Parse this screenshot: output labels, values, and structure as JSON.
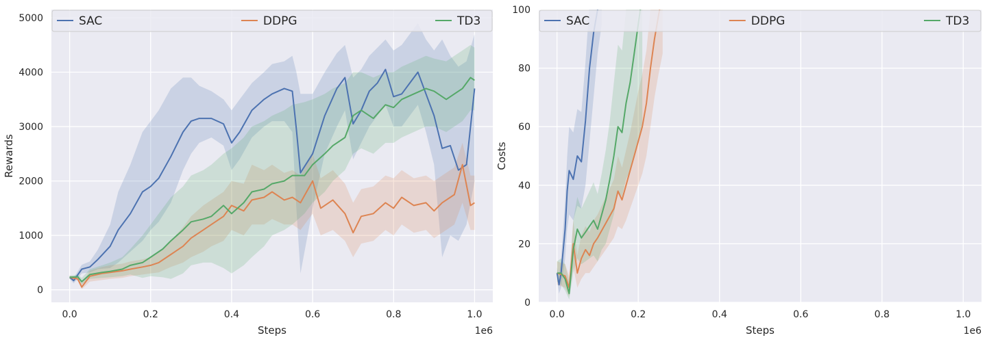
{
  "chart_data": [
    {
      "type": "line",
      "xlabel": "Steps",
      "ylabel": "Rewards",
      "x_offset_text": "1e6",
      "xlim": [
        -0.045,
        1.045
      ],
      "ylim": [
        -230,
        5150
      ],
      "xticks": [
        0.0,
        0.2,
        0.4,
        0.6,
        0.8,
        1.0
      ],
      "xtick_labels": [
        "0.0",
        "0.2",
        "0.4",
        "0.6",
        "0.8",
        "1.0"
      ],
      "yticks": [
        0,
        1000,
        2000,
        3000,
        4000,
        5000
      ],
      "ytick_labels": [
        "0",
        "1000",
        "2000",
        "3000",
        "4000",
        "5000"
      ],
      "grid": true,
      "legend_placement": "top (horizontal, full width)",
      "series": [
        {
          "name": "SAC",
          "color": "#4c72b0",
          "x": [
            0,
            0.01,
            0.03,
            0.05,
            0.07,
            0.1,
            0.12,
            0.15,
            0.18,
            0.2,
            0.22,
            0.25,
            0.28,
            0.3,
            0.32,
            0.35,
            0.38,
            0.4,
            0.42,
            0.45,
            0.48,
            0.5,
            0.53,
            0.55,
            0.56,
            0.57,
            0.6,
            0.63,
            0.66,
            0.68,
            0.7,
            0.72,
            0.74,
            0.76,
            0.78,
            0.8,
            0.82,
            0.84,
            0.86,
            0.88,
            0.9,
            0.92,
            0.94,
            0.96,
            0.98,
            1.0
          ],
          "y": [
            230,
            170,
            380,
            420,
            560,
            800,
            1100,
            1400,
            1800,
            1900,
            2050,
            2450,
            2900,
            3100,
            3150,
            3150,
            3050,
            2700,
            2900,
            3300,
            3500,
            3600,
            3700,
            3650,
            2950,
            2150,
            2500,
            3200,
            3700,
            3900,
            3050,
            3300,
            3650,
            3800,
            4050,
            3550,
            3600,
            3800,
            4000,
            3600,
            3200,
            2600,
            2650,
            2200,
            2300,
            3700
          ],
          "lower": [
            200,
            120,
            300,
            320,
            380,
            400,
            500,
            700,
            900,
            1100,
            1250,
            1600,
            2200,
            2500,
            2700,
            2800,
            2650,
            2200,
            2400,
            2800,
            3000,
            3100,
            3100,
            2900,
            1500,
            300,
            1500,
            2500,
            3000,
            3300,
            2400,
            2700,
            3000,
            3200,
            3400,
            3000,
            3000,
            3200,
            3400,
            2900,
            2300,
            600,
            1000,
            900,
            1200,
            2000
          ],
          "upper": [
            260,
            220,
            460,
            520,
            740,
            1200,
            1800,
            2300,
            2900,
            3100,
            3300,
            3700,
            3900,
            3900,
            3750,
            3650,
            3500,
            3300,
            3500,
            3800,
            4000,
            4150,
            4200,
            4300,
            4000,
            3600,
            3600,
            4000,
            4350,
            4500,
            3900,
            4050,
            4300,
            4450,
            4600,
            4400,
            4500,
            4700,
            4900,
            4600,
            4400,
            4600,
            4300,
            4100,
            4200,
            4700
          ]
        },
        {
          "name": "DDPG",
          "color": "#dd8452",
          "x": [
            0,
            0.02,
            0.03,
            0.05,
            0.08,
            0.1,
            0.13,
            0.15,
            0.18,
            0.2,
            0.22,
            0.25,
            0.28,
            0.3,
            0.33,
            0.35,
            0.38,
            0.4,
            0.43,
            0.45,
            0.48,
            0.5,
            0.53,
            0.55,
            0.57,
            0.6,
            0.62,
            0.65,
            0.68,
            0.7,
            0.72,
            0.75,
            0.78,
            0.8,
            0.82,
            0.85,
            0.88,
            0.9,
            0.92,
            0.95,
            0.97,
            0.99,
            1.0
          ],
          "y": [
            230,
            200,
            50,
            250,
            300,
            320,
            350,
            380,
            420,
            450,
            500,
            650,
            800,
            950,
            1100,
            1200,
            1350,
            1550,
            1450,
            1650,
            1700,
            1800,
            1650,
            1700,
            1600,
            2000,
            1500,
            1650,
            1400,
            1050,
            1350,
            1400,
            1600,
            1500,
            1700,
            1550,
            1600,
            1450,
            1600,
            1750,
            2300,
            1550,
            1600
          ],
          "lower": [
            200,
            170,
            10,
            150,
            180,
            200,
            220,
            250,
            280,
            300,
            320,
            420,
            500,
            600,
            700,
            800,
            900,
            1100,
            1000,
            1200,
            1200,
            1300,
            1200,
            1200,
            1100,
            1400,
            1000,
            1100,
            900,
            600,
            850,
            900,
            1100,
            1000,
            1200,
            1050,
            1100,
            950,
            1050,
            1200,
            1600,
            1100,
            1100
          ],
          "upper": [
            260,
            240,
            120,
            350,
            420,
            450,
            480,
            520,
            560,
            600,
            700,
            900,
            1150,
            1350,
            1550,
            1650,
            1800,
            2000,
            1950,
            2300,
            2200,
            2300,
            2150,
            2200,
            2100,
            2500,
            2050,
            2200,
            1950,
            1600,
            1850,
            1900,
            2100,
            2050,
            2200,
            2050,
            2100,
            2000,
            2100,
            2250,
            2700,
            2100,
            2100
          ]
        },
        {
          "name": "TD3",
          "color": "#55a868",
          "x": [
            0,
            0.02,
            0.03,
            0.05,
            0.08,
            0.1,
            0.13,
            0.15,
            0.18,
            0.2,
            0.23,
            0.25,
            0.28,
            0.3,
            0.33,
            0.35,
            0.38,
            0.4,
            0.43,
            0.45,
            0.48,
            0.5,
            0.53,
            0.55,
            0.58,
            0.6,
            0.63,
            0.65,
            0.68,
            0.7,
            0.72,
            0.75,
            0.78,
            0.8,
            0.82,
            0.85,
            0.88,
            0.9,
            0.93,
            0.95,
            0.97,
            0.99,
            1.0
          ],
          "y": [
            230,
            240,
            150,
            280,
            320,
            340,
            380,
            450,
            500,
            600,
            750,
            900,
            1100,
            1250,
            1300,
            1350,
            1550,
            1400,
            1600,
            1800,
            1850,
            1950,
            2000,
            2100,
            2100,
            2300,
            2500,
            2650,
            2800,
            3200,
            3300,
            3150,
            3400,
            3350,
            3500,
            3600,
            3700,
            3650,
            3500,
            3600,
            3700,
            3900,
            3850
          ],
          "lower": [
            200,
            200,
            100,
            200,
            220,
            230,
            250,
            280,
            220,
            250,
            230,
            200,
            300,
            450,
            500,
            500,
            400,
            300,
            450,
            600,
            800,
            1000,
            1100,
            1200,
            1400,
            1600,
            1800,
            2000,
            2200,
            2500,
            2600,
            2500,
            2700,
            2700,
            2800,
            2900,
            3000,
            3000,
            2900,
            3000,
            3100,
            3300,
            3300
          ],
          "upper": [
            260,
            280,
            220,
            380,
            450,
            500,
            600,
            750,
            1000,
            1200,
            1500,
            1700,
            1900,
            2100,
            2200,
            2300,
            2500,
            2600,
            2800,
            3000,
            3100,
            3200,
            3300,
            3400,
            3450,
            3500,
            3600,
            3700,
            3800,
            4000,
            4000,
            3900,
            4000,
            4000,
            4100,
            4200,
            4300,
            4250,
            4200,
            4300,
            4400,
            4500,
            4450
          ]
        }
      ]
    },
    {
      "type": "line",
      "xlabel": "Steps",
      "ylabel": "Costs",
      "x_offset_text": "1e6",
      "xlim": [
        -0.045,
        1.045
      ],
      "ylim": [
        0,
        100
      ],
      "xticks": [
        0.0,
        0.2,
        0.4,
        0.6,
        0.8,
        1.0
      ],
      "xtick_labels": [
        "0.0",
        "0.2",
        "0.4",
        "0.6",
        "0.8",
        "1.0"
      ],
      "yticks": [
        0,
        20,
        40,
        60,
        80,
        100
      ],
      "ytick_labels": [
        "0",
        "20",
        "40",
        "60",
        "80",
        "100"
      ],
      "grid": true,
      "legend_placement": "top (horizontal, full width)",
      "series": [
        {
          "name": "SAC",
          "color": "#4c72b0",
          "x": [
            0,
            0.005,
            0.01,
            0.02,
            0.025,
            0.03,
            0.04,
            0.05,
            0.06,
            0.07,
            0.08,
            0.09,
            0.1,
            0.11
          ],
          "y": [
            10,
            6,
            10,
            25,
            38,
            45,
            42,
            50,
            48,
            62,
            80,
            92,
            100,
            108
          ],
          "lower": [
            8,
            3,
            5,
            15,
            25,
            30,
            28,
            33,
            32,
            40,
            55,
            70,
            85,
            95
          ],
          "upper": [
            12,
            9,
            15,
            35,
            50,
            60,
            58,
            66,
            65,
            82,
            102,
            115,
            125,
            135
          ]
        },
        {
          "name": "DDPG",
          "color": "#dd8452",
          "x": [
            0,
            0.02,
            0.03,
            0.04,
            0.05,
            0.06,
            0.07,
            0.08,
            0.09,
            0.1,
            0.12,
            0.14,
            0.15,
            0.16,
            0.17,
            0.18,
            0.19,
            0.2,
            0.21,
            0.22,
            0.23,
            0.24,
            0.25,
            0.26
          ],
          "y": [
            10,
            9,
            5,
            20,
            10,
            15,
            18,
            16,
            20,
            22,
            27,
            32,
            38,
            35,
            40,
            45,
            50,
            55,
            60,
            68,
            80,
            90,
            98,
            106
          ],
          "lower": [
            6,
            5,
            2,
            12,
            5,
            8,
            10,
            10,
            12,
            14,
            18,
            22,
            26,
            25,
            28,
            32,
            36,
            40,
            44,
            50,
            60,
            70,
            78,
            85
          ],
          "upper": [
            14,
            13,
            9,
            28,
            16,
            23,
            26,
            24,
            28,
            30,
            36,
            42,
            50,
            46,
            52,
            58,
            65,
            72,
            78,
            86,
            100,
            112,
            120,
            128
          ]
        },
        {
          "name": "TD3",
          "color": "#55a868",
          "x": [
            0,
            0.01,
            0.02,
            0.03,
            0.04,
            0.05,
            0.06,
            0.07,
            0.08,
            0.09,
            0.1,
            0.11,
            0.12,
            0.13,
            0.14,
            0.15,
            0.16,
            0.17,
            0.18,
            0.19,
            0.2,
            0.21
          ],
          "y": [
            10,
            10,
            8,
            3,
            18,
            25,
            22,
            24,
            26,
            28,
            25,
            30,
            35,
            42,
            50,
            60,
            58,
            68,
            75,
            85,
            95,
            105
          ],
          "lower": [
            7,
            6,
            4,
            1,
            10,
            15,
            13,
            14,
            15,
            16,
            14,
            18,
            20,
            25,
            30,
            38,
            36,
            42,
            45,
            50,
            55,
            60
          ],
          "upper": [
            14,
            15,
            13,
            7,
            28,
            36,
            32,
            35,
            38,
            41,
            37,
            44,
            52,
            62,
            75,
            88,
            86,
            100,
            112,
            125,
            140,
            150
          ]
        }
      ]
    }
  ]
}
